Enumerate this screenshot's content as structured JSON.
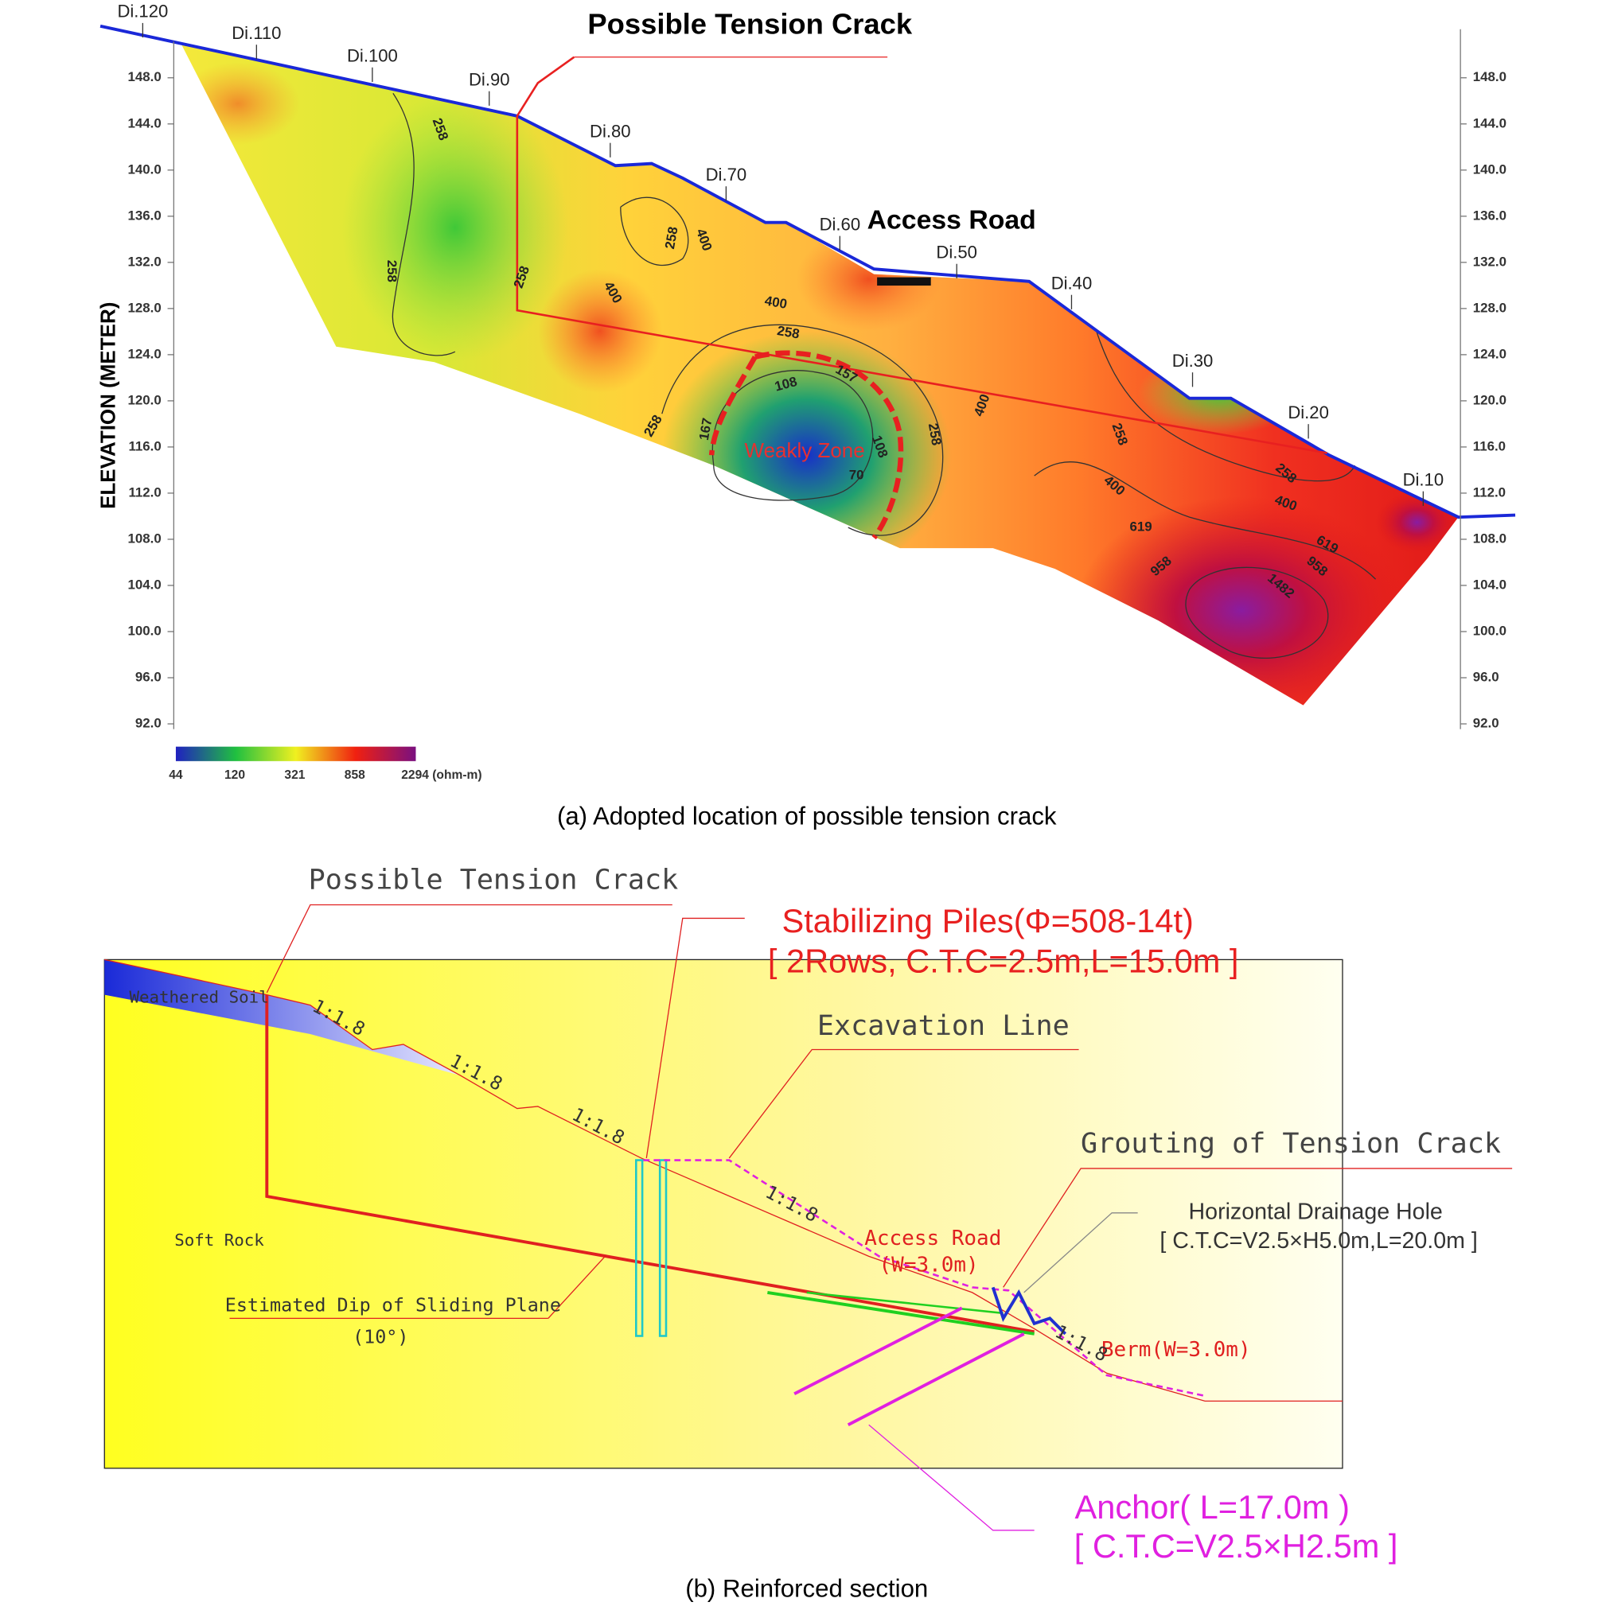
{
  "figure_a": {
    "title": "Possible Tension Crack",
    "stations": [
      "Di.120",
      "Di.110",
      "Di.100",
      "Di.90",
      "Di.80",
      "Di.70",
      "Di.60",
      "Di.50",
      "Di.40",
      "Di.30",
      "Di.20",
      "Di.10"
    ],
    "access_road": "Access Road",
    "y_axis_label": "ELEVATION (METER)",
    "yticks": [
      "148.0",
      "144.0",
      "140.0",
      "136.0",
      "132.0",
      "128.0",
      "124.0",
      "120.0",
      "116.0",
      "112.0",
      "108.0",
      "104.0",
      "100.0",
      "96.0",
      "92.0"
    ],
    "contour_labels": [
      "258",
      "258",
      "258",
      "400",
      "258",
      "400",
      "400",
      "258",
      "108",
      "157",
      "258",
      "167",
      "108",
      "70",
      "258",
      "400",
      "258",
      "400",
      "258",
      "400",
      "619",
      "619",
      "958",
      "958",
      "1482"
    ],
    "weak_zone": "Weakly Zone",
    "colorbar_labels": [
      "44",
      "120",
      "321",
      "858",
      "2294 (ohm-m)"
    ],
    "caption": "(a) Adopted location of possible tension crack"
  },
  "figure_b": {
    "tension_crack": "Possible Tension Crack",
    "piles": [
      "Stabilizing Piles(Φ=508-14t)",
      "[ 2Rows, C.T.C=2.5m,L=15.0m ]"
    ],
    "excavation": "Excavation Line",
    "grouting": "Grouting of Tension Crack",
    "drainage": [
      "Horizontal Drainage Hole",
      "[ C.T.C=V2.5×H5.0m,L=20.0m ]"
    ],
    "weathered_soil": "Weathered Soil",
    "soft_rock": "Soft Rock",
    "slopes": [
      "1:1.8",
      "1:1.8",
      "1:1.8",
      "1:1.8",
      "1:1.8"
    ],
    "sliding_plane": [
      "Estimated Dip of Sliding Plane",
      "(10°)"
    ],
    "access_road": [
      "Access Road",
      "(W=3.0m)"
    ],
    "berm": "Berm(W=3.0m)",
    "anchor": [
      "Anchor( L=17.0m )",
      "[ C.T.C=V2.5×H2.5m ]"
    ],
    "caption": "(b) Reinforced section"
  }
}
